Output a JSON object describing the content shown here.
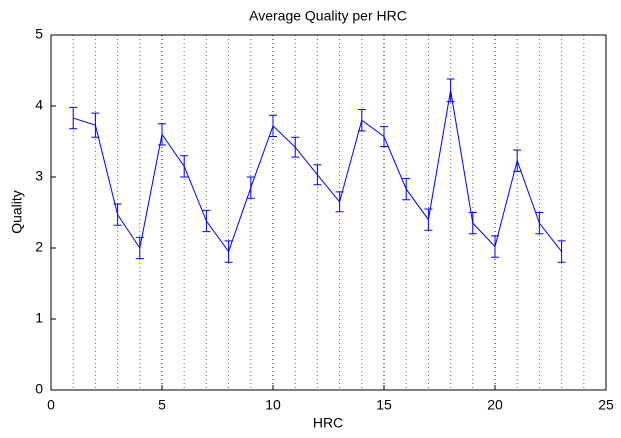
{
  "chart_data": {
    "type": "line",
    "title": "Average Quality per HRC",
    "xlabel": "HRC",
    "ylabel": "Quality",
    "x": [
      1,
      2,
      3,
      4,
      5,
      6,
      7,
      8,
      9,
      10,
      11,
      12,
      13,
      14,
      15,
      16,
      17,
      18,
      19,
      20,
      21,
      22,
      23
    ],
    "series": [
      {
        "color": "#0000ff",
        "values": [
          3.83,
          3.73,
          2.47,
          2.0,
          3.6,
          3.15,
          2.38,
          1.95,
          2.85,
          3.72,
          3.42,
          3.03,
          2.65,
          3.8,
          3.57,
          2.83,
          2.4,
          4.22,
          2.35,
          2.02,
          3.23,
          2.35,
          1.95
        ],
        "errors": [
          0.15,
          0.17,
          0.15,
          0.15,
          0.15,
          0.15,
          0.15,
          0.15,
          0.15,
          0.15,
          0.14,
          0.14,
          0.14,
          0.15,
          0.14,
          0.15,
          0.15,
          0.16,
          0.15,
          0.15,
          0.15,
          0.15,
          0.15
        ]
      }
    ],
    "xlim": [
      0,
      25
    ],
    "xticks": [
      0,
      5,
      10,
      15,
      20,
      25
    ],
    "xminorticks": [
      1,
      2,
      3,
      4,
      6,
      7,
      8,
      9,
      11,
      12,
      13,
      14,
      16,
      17,
      18,
      19,
      21,
      22,
      23,
      24
    ],
    "ylim": [
      0,
      5
    ],
    "yticks": [
      0,
      1,
      2,
      3,
      4,
      5
    ],
    "grid": true
  }
}
